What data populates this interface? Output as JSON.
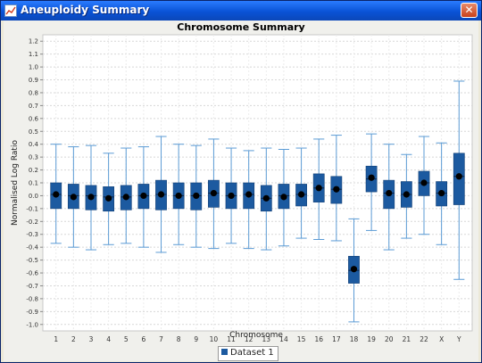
{
  "window": {
    "title": "Aneuploidy Summary",
    "close_glyph": "✕"
  },
  "chart_data": {
    "type": "box",
    "title": "Chromosome Summary",
    "xlabel": "Chromosome",
    "ylabel": "Normalised Log Ratio",
    "ylim": [
      -1.05,
      1.25
    ],
    "y_ticks": [
      1.2,
      1.1,
      1.0,
      0.9,
      0.8,
      0.7,
      0.6,
      0.5,
      0.4,
      0.3,
      0.2,
      0.1,
      0.0,
      -0.1,
      -0.2,
      -0.3,
      -0.4,
      -0.5,
      -0.6,
      -0.7,
      -0.8,
      -0.9,
      -1.0
    ],
    "y_tick_labels": [
      "1.2",
      "1.1",
      "1.0",
      "0.9",
      "0.8",
      "0.7",
      "0.6",
      "0.5",
      "0.4",
      "0.3",
      "0.2",
      "0.1",
      "0.0",
      "-0.1",
      "-0.2",
      "-0.3",
      "-0.4",
      "-0.5",
      "-0.6",
      "-0.7",
      "-0.8",
      "-0.9",
      "-1.0"
    ],
    "categories": [
      "1",
      "2",
      "3",
      "4",
      "5",
      "6",
      "7",
      "8",
      "9",
      "10",
      "11",
      "12",
      "13",
      "14",
      "15",
      "16",
      "17",
      "18",
      "19",
      "20",
      "21",
      "22",
      "X",
      "Y"
    ],
    "grid": true,
    "legend_position": "bottom-center",
    "series": [
      {
        "name": "Dataset 1",
        "color": "#1c5aa0",
        "boxes": [
          {
            "min": -0.37,
            "q1": -0.1,
            "median": 0.01,
            "q3": 0.1,
            "max": 0.4,
            "mean": 0.01
          },
          {
            "min": -0.4,
            "q1": -0.1,
            "median": 0.0,
            "q3": 0.09,
            "max": 0.38,
            "mean": -0.01
          },
          {
            "min": -0.42,
            "q1": -0.11,
            "median": 0.0,
            "q3": 0.08,
            "max": 0.39,
            "mean": -0.01
          },
          {
            "min": -0.38,
            "q1": -0.12,
            "median": -0.01,
            "q3": 0.07,
            "max": 0.33,
            "mean": -0.02
          },
          {
            "min": -0.37,
            "q1": -0.11,
            "median": -0.01,
            "q3": 0.08,
            "max": 0.37,
            "mean": -0.01
          },
          {
            "min": -0.4,
            "q1": -0.1,
            "median": 0.0,
            "q3": 0.09,
            "max": 0.38,
            "mean": 0.0
          },
          {
            "min": -0.44,
            "q1": -0.11,
            "median": 0.01,
            "q3": 0.12,
            "max": 0.46,
            "mean": 0.01
          },
          {
            "min": -0.38,
            "q1": -0.1,
            "median": 0.0,
            "q3": 0.1,
            "max": 0.4,
            "mean": 0.0
          },
          {
            "min": -0.4,
            "q1": -0.11,
            "median": 0.0,
            "q3": 0.1,
            "max": 0.39,
            "mean": 0.0
          },
          {
            "min": -0.41,
            "q1": -0.09,
            "median": 0.02,
            "q3": 0.12,
            "max": 0.44,
            "mean": 0.02
          },
          {
            "min": -0.37,
            "q1": -0.1,
            "median": 0.0,
            "q3": 0.1,
            "max": 0.37,
            "mean": 0.0
          },
          {
            "min": -0.41,
            "q1": -0.1,
            "median": 0.01,
            "q3": 0.1,
            "max": 0.35,
            "mean": 0.01
          },
          {
            "min": -0.42,
            "q1": -0.12,
            "median": -0.02,
            "q3": 0.08,
            "max": 0.37,
            "mean": -0.02
          },
          {
            "min": -0.39,
            "q1": -0.1,
            "median": 0.0,
            "q3": 0.09,
            "max": 0.36,
            "mean": -0.01
          },
          {
            "min": -0.33,
            "q1": -0.08,
            "median": 0.01,
            "q3": 0.09,
            "max": 0.37,
            "mean": 0.01
          },
          {
            "min": -0.34,
            "q1": -0.05,
            "median": 0.06,
            "q3": 0.17,
            "max": 0.44,
            "mean": 0.06
          },
          {
            "min": -0.35,
            "q1": -0.06,
            "median": 0.05,
            "q3": 0.15,
            "max": 0.47,
            "mean": 0.05
          },
          {
            "min": -0.98,
            "q1": -0.68,
            "median": -0.58,
            "q3": -0.47,
            "max": -0.18,
            "mean": -0.57
          },
          {
            "min": -0.27,
            "q1": 0.03,
            "median": 0.13,
            "q3": 0.23,
            "max": 0.48,
            "mean": 0.14
          },
          {
            "min": -0.42,
            "q1": -0.1,
            "median": 0.02,
            "q3": 0.12,
            "max": 0.4,
            "mean": 0.02
          },
          {
            "min": -0.33,
            "q1": -0.09,
            "median": 0.01,
            "q3": 0.11,
            "max": 0.32,
            "mean": 0.01
          },
          {
            "min": -0.3,
            "q1": 0.0,
            "median": 0.1,
            "q3": 0.19,
            "max": 0.46,
            "mean": 0.1
          },
          {
            "min": -0.38,
            "q1": -0.08,
            "median": 0.02,
            "q3": 0.11,
            "max": 0.41,
            "mean": 0.02
          },
          {
            "min": -0.65,
            "q1": -0.07,
            "median": 0.15,
            "q3": 0.33,
            "max": 0.89,
            "mean": 0.15
          }
        ]
      }
    ]
  }
}
